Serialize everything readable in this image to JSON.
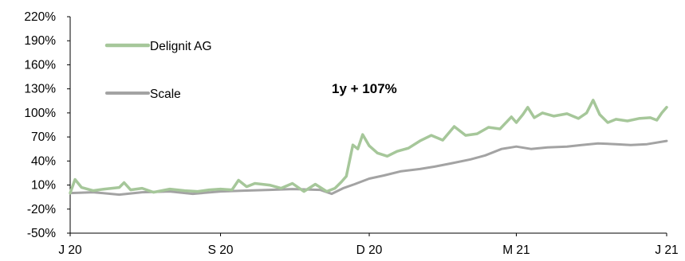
{
  "chart_data": {
    "type": "line",
    "title": "",
    "xlabel": "",
    "ylabel": "",
    "ylim": [
      -50,
      220
    ],
    "yticks": [
      -50,
      -20,
      10,
      40,
      70,
      100,
      130,
      160,
      190,
      220
    ],
    "ytick_labels": [
      "-50%",
      "-20%",
      "10%",
      "40%",
      "70%",
      "100%",
      "130%",
      "160%",
      "190%",
      "220%"
    ],
    "xlim": [
      "2020-06-01",
      "2021-06-01"
    ],
    "xticks": [
      {
        "date": "2020-06-01",
        "label": "J 20"
      },
      {
        "date": "2020-09-01",
        "label": "S 20"
      },
      {
        "date": "2020-12-01",
        "label": "D 20"
      },
      {
        "date": "2021-03-01",
        "label": "M 21"
      },
      {
        "date": "2021-06-01",
        "label": "J 21"
      }
    ],
    "grid": false,
    "legend_position": "top-left",
    "annotation": "1y + 107%",
    "series": [
      {
        "name": "Delignit AG",
        "color": "#a6c79a",
        "points": [
          [
            "2020-06-01",
            0
          ],
          [
            "2020-06-04",
            17
          ],
          [
            "2020-06-08",
            7
          ],
          [
            "2020-06-15",
            3
          ],
          [
            "2020-06-22",
            5
          ],
          [
            "2020-07-01",
            7
          ],
          [
            "2020-07-04",
            13
          ],
          [
            "2020-07-08",
            4
          ],
          [
            "2020-07-15",
            6
          ],
          [
            "2020-07-22",
            1
          ],
          [
            "2020-08-01",
            5
          ],
          [
            "2020-08-10",
            3
          ],
          [
            "2020-08-18",
            2
          ],
          [
            "2020-08-25",
            4
          ],
          [
            "2020-09-01",
            5
          ],
          [
            "2020-09-08",
            4
          ],
          [
            "2020-09-12",
            16
          ],
          [
            "2020-09-17",
            8
          ],
          [
            "2020-09-22",
            12
          ],
          [
            "2020-10-01",
            10
          ],
          [
            "2020-10-08",
            6
          ],
          [
            "2020-10-15",
            12
          ],
          [
            "2020-10-22",
            2
          ],
          [
            "2020-10-29",
            11
          ],
          [
            "2020-11-05",
            2
          ],
          [
            "2020-11-10",
            6
          ],
          [
            "2020-11-14",
            14
          ],
          [
            "2020-11-17",
            21
          ],
          [
            "2020-11-21",
            60
          ],
          [
            "2020-11-24",
            55
          ],
          [
            "2020-11-27",
            73
          ],
          [
            "2020-12-01",
            59
          ],
          [
            "2020-12-06",
            50
          ],
          [
            "2020-12-12",
            46
          ],
          [
            "2020-12-18",
            52
          ],
          [
            "2020-12-25",
            56
          ],
          [
            "2021-01-01",
            65
          ],
          [
            "2021-01-08",
            72
          ],
          [
            "2021-01-15",
            66
          ],
          [
            "2021-01-22",
            83
          ],
          [
            "2021-01-29",
            72
          ],
          [
            "2021-02-05",
            74
          ],
          [
            "2021-02-12",
            82
          ],
          [
            "2021-02-19",
            80
          ],
          [
            "2021-02-26",
            95
          ],
          [
            "2021-03-01",
            88
          ],
          [
            "2021-03-05",
            98
          ],
          [
            "2021-03-08",
            107
          ],
          [
            "2021-03-12",
            94
          ],
          [
            "2021-03-17",
            100
          ],
          [
            "2021-03-24",
            96
          ],
          [
            "2021-04-01",
            99
          ],
          [
            "2021-04-08",
            93
          ],
          [
            "2021-04-13",
            100
          ],
          [
            "2021-04-17",
            116
          ],
          [
            "2021-04-21",
            98
          ],
          [
            "2021-04-26",
            88
          ],
          [
            "2021-05-01",
            92
          ],
          [
            "2021-05-08",
            90
          ],
          [
            "2021-05-15",
            93
          ],
          [
            "2021-05-22",
            94
          ],
          [
            "2021-05-26",
            91
          ],
          [
            "2021-05-29",
            100
          ],
          [
            "2021-06-01",
            107
          ]
        ]
      },
      {
        "name": "Scale",
        "color": "#a3a3a3",
        "points": [
          [
            "2020-06-01",
            0
          ],
          [
            "2020-06-15",
            1
          ],
          [
            "2020-07-01",
            -2
          ],
          [
            "2020-07-15",
            1
          ],
          [
            "2020-08-01",
            2
          ],
          [
            "2020-08-15",
            -1
          ],
          [
            "2020-09-01",
            2
          ],
          [
            "2020-09-15",
            3
          ],
          [
            "2020-10-01",
            4
          ],
          [
            "2020-10-15",
            5
          ],
          [
            "2020-11-01",
            4
          ],
          [
            "2020-11-08",
            -1
          ],
          [
            "2020-11-15",
            6
          ],
          [
            "2020-11-22",
            11
          ],
          [
            "2020-12-01",
            18
          ],
          [
            "2020-12-10",
            22
          ],
          [
            "2020-12-20",
            27
          ],
          [
            "2021-01-01",
            30
          ],
          [
            "2021-01-10",
            33
          ],
          [
            "2021-01-20",
            37
          ],
          [
            "2021-02-01",
            42
          ],
          [
            "2021-02-10",
            47
          ],
          [
            "2021-02-20",
            55
          ],
          [
            "2021-03-01",
            58
          ],
          [
            "2021-03-10",
            55
          ],
          [
            "2021-03-20",
            57
          ],
          [
            "2021-04-01",
            58
          ],
          [
            "2021-04-10",
            60
          ],
          [
            "2021-04-20",
            62
          ],
          [
            "2021-05-01",
            61
          ],
          [
            "2021-05-10",
            60
          ],
          [
            "2021-05-20",
            61
          ],
          [
            "2021-06-01",
            65
          ]
        ]
      }
    ]
  }
}
